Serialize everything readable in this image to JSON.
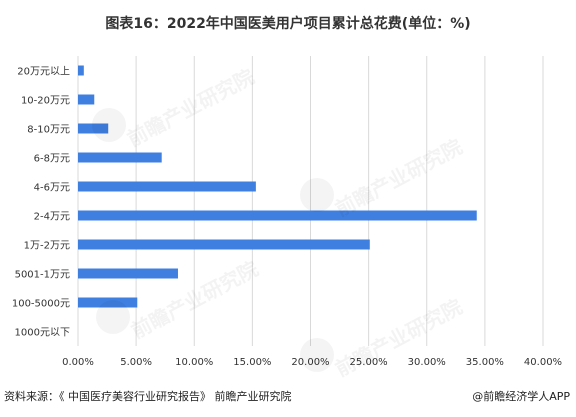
{
  "title": "图表16：2022年中国医美用户项目累计总花费(单位：%)",
  "footer": {
    "source": "资料来源：《 中国医疗美容行业研究报告》 前瞻产业研究院",
    "brand": "@前瞻经济学人APP"
  },
  "watermark": "前瞻产业研究院",
  "chart_data": {
    "type": "bar",
    "orientation": "horizontal",
    "categories": [
      "20万元以上",
      "10-20万元",
      "8-10万元",
      "6-8万元",
      "4-6万元",
      "2-4万元",
      "1万-2万元",
      "5001-1万元",
      "100-5000元",
      "1000元以下"
    ],
    "values": [
      0.5,
      1.4,
      2.6,
      7.2,
      15.3,
      34.3,
      25.1,
      8.6,
      5.1,
      0
    ],
    "xticks": [
      "0.00%",
      "5.00%",
      "10.00%",
      "15.00%",
      "20.00%",
      "25.00%",
      "30.00%",
      "35.00%",
      "40.00%"
    ],
    "xlim": [
      0,
      40
    ],
    "bar_color": "#3f7fe0",
    "grid": "vertical"
  }
}
